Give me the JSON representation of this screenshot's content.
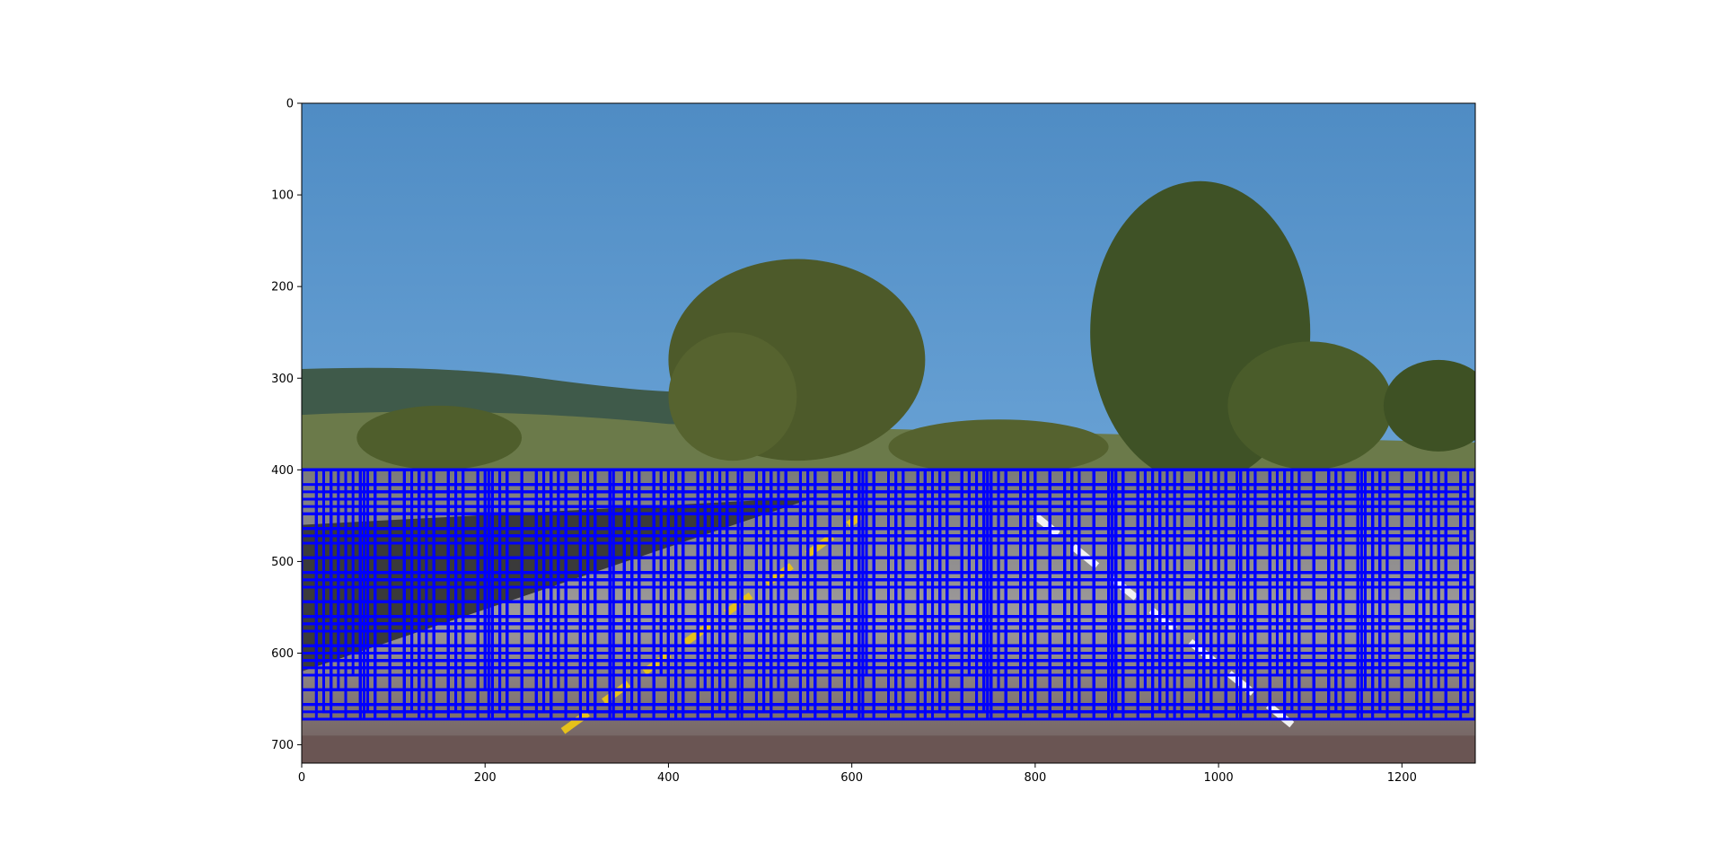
{
  "chart_data": {
    "type": "image",
    "title": "",
    "xlabel": "",
    "ylabel": "",
    "xlim": [
      0,
      1280
    ],
    "ylim": [
      720,
      0
    ],
    "x_ticks": [
      0,
      200,
      400,
      600,
      800,
      1000,
      1200
    ],
    "y_ticks": [
      0,
      100,
      200,
      300,
      400,
      500,
      600,
      700
    ],
    "grid": false,
    "legend": "none",
    "box_color": "#0000ff",
    "sliding_window_search": {
      "y_start": 400,
      "window_sizes": [
        64,
        96,
        128,
        160,
        192,
        224,
        256,
        272
      ],
      "x_step_fraction": 0.25,
      "y_step_fraction": 0.25,
      "y_stop": 672,
      "x_start": 0,
      "x_stop": 1280
    }
  }
}
